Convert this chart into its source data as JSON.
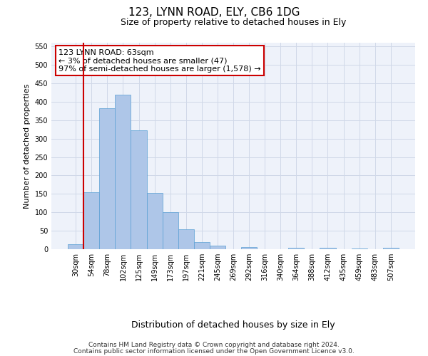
{
  "title": "123, LYNN ROAD, ELY, CB6 1DG",
  "subtitle": "Size of property relative to detached houses in Ely",
  "xlabel": "Distribution of detached houses by size in Ely",
  "ylabel": "Number of detached properties",
  "categories": [
    "30sqm",
    "54sqm",
    "78sqm",
    "102sqm",
    "125sqm",
    "149sqm",
    "173sqm",
    "197sqm",
    "221sqm",
    "245sqm",
    "269sqm",
    "292sqm",
    "316sqm",
    "340sqm",
    "364sqm",
    "388sqm",
    "412sqm",
    "435sqm",
    "459sqm",
    "483sqm",
    "507sqm"
  ],
  "values": [
    13,
    155,
    383,
    420,
    322,
    152,
    100,
    55,
    19,
    10,
    0,
    5,
    0,
    0,
    4,
    0,
    3,
    0,
    2,
    0,
    4
  ],
  "bar_color": "#aec6e8",
  "bar_edge_color": "#5a9fd4",
  "vline_color": "#cc0000",
  "vline_x_idx": 1,
  "annotation_text": "123 LYNN ROAD: 63sqm\n← 3% of detached houses are smaller (47)\n97% of semi-detached houses are larger (1,578) →",
  "annotation_box_color": "#ffffff",
  "annotation_box_edge_color": "#cc0000",
  "ylim": [
    0,
    560
  ],
  "yticks": [
    0,
    50,
    100,
    150,
    200,
    250,
    300,
    350,
    400,
    450,
    500,
    550
  ],
  "grid_color": "#d0d8e8",
  "background_color": "#eef2fa",
  "footnote_line1": "Contains HM Land Registry data © Crown copyright and database right 2024.",
  "footnote_line2": "Contains public sector information licensed under the Open Government Licence v3.0.",
  "title_fontsize": 11,
  "subtitle_fontsize": 9,
  "xlabel_fontsize": 9,
  "ylabel_fontsize": 8,
  "tick_fontsize": 7,
  "annotation_fontsize": 8,
  "footnote_fontsize": 6.5
}
